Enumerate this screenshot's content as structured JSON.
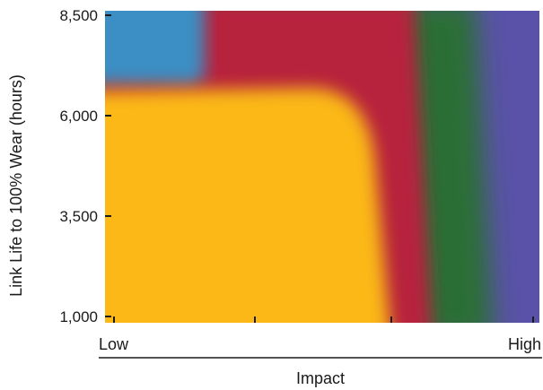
{
  "chart_data": {
    "type": "heatmap",
    "title": "",
    "xlabel": "Impact",
    "ylabel": "Link Life to 100% Wear (hours)",
    "x_tick_labels": [
      "Low",
      "High"
    ],
    "y_ticks": [
      1000,
      3500,
      6000,
      8500
    ],
    "y_tick_labels": [
      "1,000",
      "3,500",
      "6,000",
      "8,500"
    ],
    "ylim": [
      1000,
      8500
    ],
    "x_scale": "qualitative (Low to High)",
    "grid": false,
    "legend": "none",
    "colors": {
      "yellow": "#fbb815",
      "blue": "#3a8fc4",
      "red": "#b7213c",
      "green": "#2b6e35",
      "purple": "#5a52a8"
    }
  }
}
